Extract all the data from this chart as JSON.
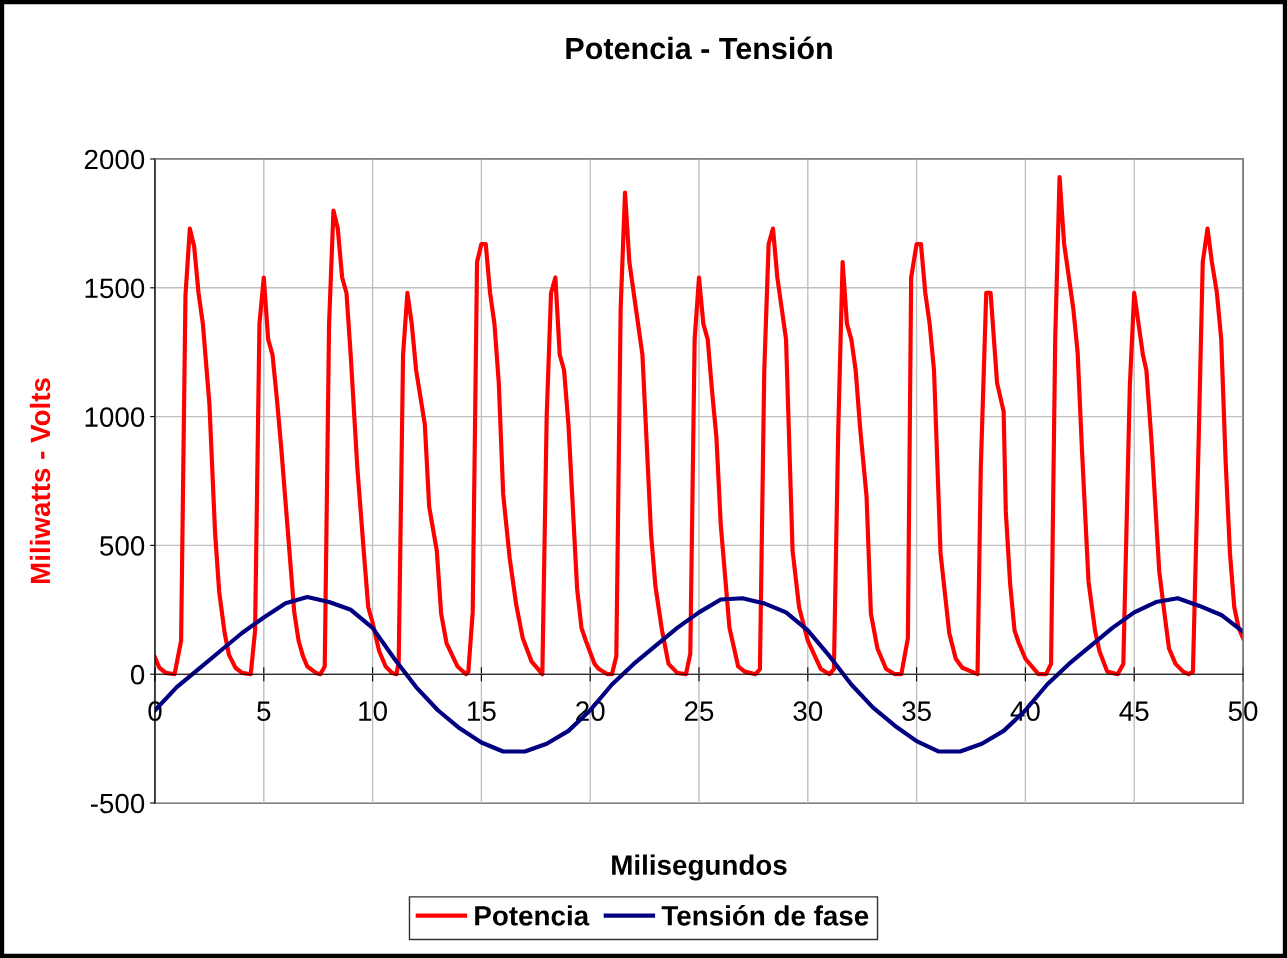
{
  "chart_data": {
    "type": "line",
    "title": "Potencia - Tensión",
    "xlabel": "Milisegundos",
    "ylabel": "Miliwatts - Volts",
    "xlim": [
      0,
      50
    ],
    "xticks": [
      0,
      5,
      10,
      15,
      20,
      25,
      30,
      35,
      40,
      45,
      50
    ],
    "ylim": [
      -500,
      2000
    ],
    "yticks": [
      -500,
      0,
      500,
      1000,
      1500,
      2000
    ],
    "grid": true,
    "legend": "bottom",
    "marker": "none",
    "line_style": "solid",
    "series": [
      {
        "name": "Potencia",
        "color": "#ff0000",
        "x": [
          0,
          0.2,
          0.5,
          0.9,
          1.2,
          1.4,
          1.6,
          1.8,
          2.0,
          2.2,
          2.5,
          2.76,
          2.95,
          3.2,
          3.4,
          3.7,
          4.0,
          4.4,
          4.6,
          4.8,
          5.0,
          5.2,
          5.4,
          5.6,
          5.8,
          6.1,
          6.4,
          6.6,
          6.8,
          7.0,
          7.4,
          7.6,
          7.8,
          8.0,
          8.2,
          8.4,
          8.6,
          8.8,
          9.0,
          9.3,
          9.6,
          9.8,
          10.0,
          10.3,
          10.6,
          10.9,
          11.1,
          11.2,
          11.4,
          11.6,
          11.8,
          12.0,
          12.4,
          12.6,
          12.95,
          13.15,
          13.4,
          13.9,
          14.3,
          14.4,
          14.6,
          14.8,
          15.0,
          15.2,
          15.4,
          15.6,
          15.8,
          16.0,
          16.3,
          16.6,
          16.9,
          17.3,
          17.8,
          18.0,
          18.2,
          18.4,
          18.6,
          18.8,
          19.0,
          19.4,
          19.6,
          19.8,
          20.2,
          20.4,
          20.8,
          21.0,
          21.2,
          21.4,
          21.6,
          21.8,
          22.1,
          22.4,
          22.8,
          23.0,
          23.3,
          23.6,
          24.0,
          24.4,
          24.6,
          24.8,
          25.0,
          25.2,
          25.4,
          25.6,
          25.8,
          26.0,
          26.4,
          26.8,
          27.1,
          27.6,
          27.8,
          28.0,
          28.2,
          28.4,
          28.6,
          29.0,
          29.3,
          29.6,
          30.0,
          30.6,
          31.0,
          31.2,
          31.4,
          31.6,
          31.8,
          32.0,
          32.2,
          32.4,
          32.7,
          32.9,
          33.2,
          33.6,
          34.0,
          34.3,
          34.6,
          34.75,
          35.0,
          35.2,
          35.4,
          35.6,
          35.8,
          36.1,
          36.5,
          36.8,
          37.1,
          37.8,
          37.95,
          38.2,
          38.4,
          38.7,
          39.0,
          39.1,
          39.3,
          39.5,
          39.7,
          40.0,
          40.4,
          40.6,
          40.95,
          41.18,
          41.37,
          41.57,
          41.78,
          42.2,
          42.4,
          42.6,
          42.9,
          43.2,
          43.4,
          43.76,
          44.24,
          44.5,
          44.8,
          45.0,
          45.4,
          45.56,
          45.8,
          46.15,
          46.4,
          46.6,
          46.9,
          47.25,
          47.5,
          47.7,
          47.96,
          48.15,
          48.37,
          48.57,
          48.8,
          49.0,
          49.2,
          49.4,
          49.6,
          49.8,
          50.0
        ],
        "values": [
          65,
          25,
          5,
          0,
          130,
          1470,
          1730,
          1660,
          1480,
          1360,
          1050,
          550,
          320,
          160,
          75,
          25,
          5,
          0,
          170,
          1360,
          1540,
          1300,
          1240,
          1070,
          880,
          560,
          240,
          130,
          70,
          30,
          5,
          0,
          30,
          1360,
          1800,
          1730,
          1540,
          1480,
          1230,
          800,
          470,
          260,
          200,
          90,
          30,
          5,
          0,
          50,
          1240,
          1480,
          1360,
          1180,
          970,
          650,
          480,
          235,
          120,
          30,
          0,
          10,
          240,
          1600,
          1670,
          1670,
          1480,
          1360,
          1130,
          700,
          450,
          270,
          140,
          50,
          0,
          1000,
          1480,
          1540,
          1240,
          1180,
          970,
          330,
          180,
          130,
          40,
          20,
          0,
          0,
          70,
          1420,
          1870,
          1600,
          1420,
          1240,
          540,
          340,
          170,
          40,
          5,
          0,
          80,
          1300,
          1540,
          1360,
          1300,
          1100,
          920,
          580,
          180,
          30,
          10,
          0,
          20,
          1180,
          1670,
          1730,
          1540,
          1300,
          480,
          260,
          130,
          20,
          0,
          20,
          950,
          1600,
          1360,
          1300,
          1180,
          960,
          690,
          235,
          100,
          20,
          0,
          0,
          140,
          1540,
          1670,
          1670,
          1480,
          1360,
          1180,
          470,
          160,
          60,
          25,
          0,
          800,
          1480,
          1480,
          1130,
          1020,
          630,
          350,
          170,
          120,
          60,
          20,
          0,
          0,
          40,
          1300,
          1930,
          1670,
          1420,
          1250,
          870,
          360,
          170,
          90,
          10,
          0,
          40,
          1120,
          1480,
          1240,
          1180,
          900,
          400,
          230,
          100,
          40,
          10,
          0,
          10,
          900,
          1600,
          1730,
          1600,
          1480,
          1300,
          830,
          470,
          260,
          180,
          140
        ]
      },
      {
        "name": "Tensión de fase",
        "color": "#000080",
        "x": [
          0,
          1,
          2,
          3,
          4,
          5,
          6,
          7,
          8,
          9,
          10,
          11,
          12,
          13,
          14,
          15,
          16,
          17,
          18,
          19,
          20,
          21,
          22,
          23,
          24,
          25,
          26,
          27,
          28,
          29,
          30,
          31,
          32,
          33,
          34,
          35,
          36,
          37,
          38,
          39,
          40,
          41,
          42,
          43,
          44,
          45,
          46,
          47,
          48,
          49,
          50
        ],
        "values": [
          -140,
          -50,
          20,
          90,
          160,
          220,
          275,
          300,
          280,
          250,
          180,
          60,
          -50,
          -140,
          -210,
          -265,
          -300,
          -300,
          -270,
          -220,
          -140,
          -40,
          40,
          110,
          180,
          240,
          290,
          295,
          275,
          240,
          170,
          70,
          -40,
          -130,
          -200,
          -260,
          -300,
          -300,
          -270,
          -220,
          -140,
          -40,
          40,
          110,
          180,
          240,
          280,
          295,
          265,
          230,
          165
        ]
      }
    ]
  }
}
